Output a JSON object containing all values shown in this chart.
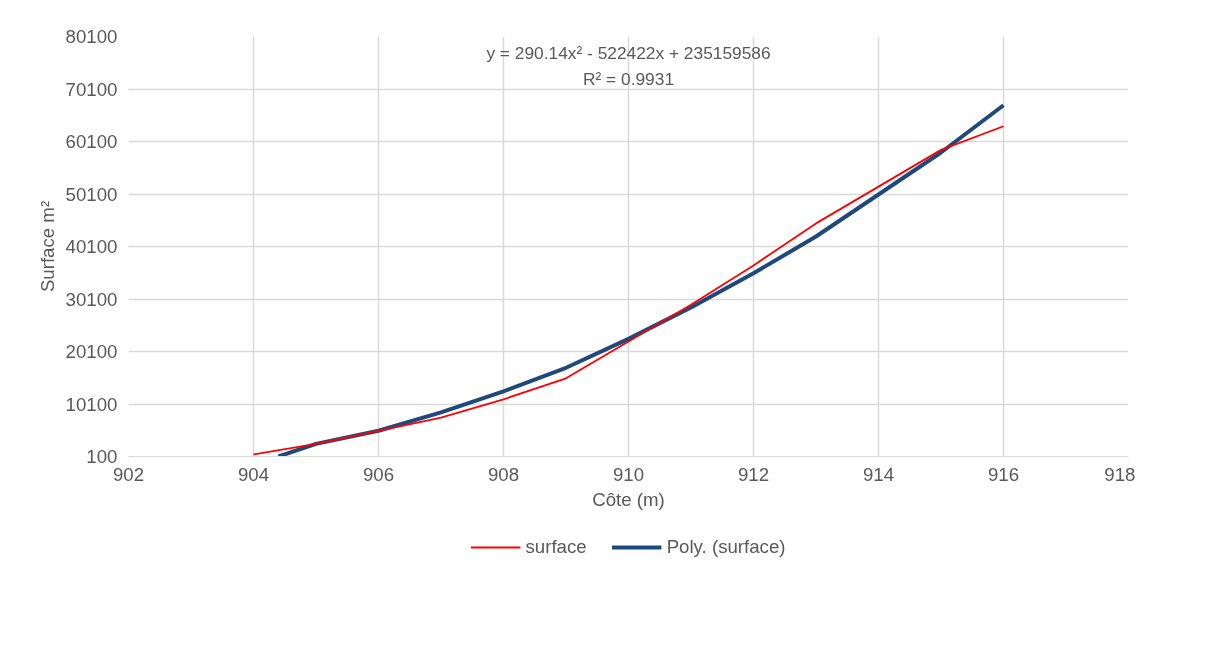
{
  "chart_data": {
    "type": "line",
    "xlabel": "Côte (m)",
    "ylabel": "Surface m²",
    "xlim": [
      902,
      918
    ],
    "xticks": [
      902,
      904,
      906,
      908,
      910,
      912,
      914,
      916,
      918
    ],
    "ylim": [
      100,
      80100
    ],
    "yticks": [
      100,
      10100,
      20100,
      30100,
      40100,
      50100,
      60100,
      70100,
      80100
    ],
    "grid": true,
    "legend": "bottom",
    "line_style": "solid",
    "marker": "none",
    "annotations": [
      "y = 290.14x² - 522422x + 235159586",
      "R² = 0.9931"
    ],
    "series": [
      {
        "name": "surface",
        "color": "#ff0000",
        "x": [
          904,
          905,
          906,
          907,
          908,
          909,
          910,
          911,
          912,
          913,
          914,
          915,
          916
        ],
        "values": [
          500,
          2500,
          5000,
          7500,
          11000,
          15000,
          22000,
          29000,
          36500,
          44500,
          51500,
          58500,
          63000
        ]
      },
      {
        "name": "Poly. (surface)",
        "color": "#1f497d",
        "x": [
          904.4,
          905,
          906,
          907,
          908,
          909,
          910,
          911,
          912,
          913,
          914,
          915,
          916
        ],
        "values": [
          100,
          2500,
          5000,
          8500,
          12500,
          17000,
          22500,
          28500,
          35000,
          42000,
          50000,
          58000,
          67000
        ]
      }
    ]
  }
}
